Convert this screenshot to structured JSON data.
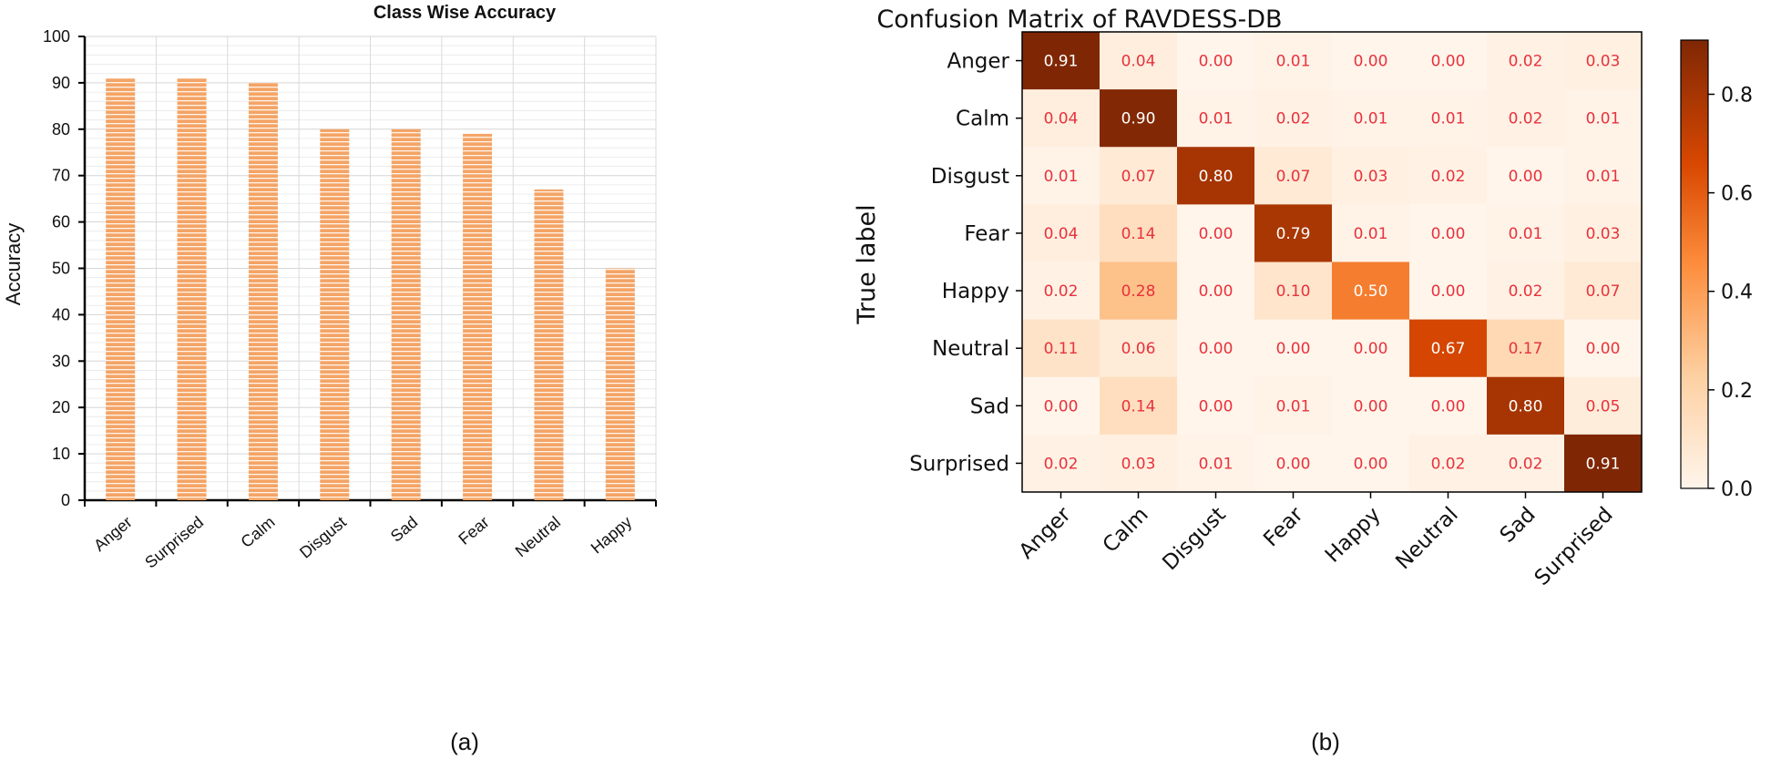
{
  "chart_data": [
    {
      "type": "bar",
      "title": "Class Wise Accuracy",
      "ylabel": "Accuracy",
      "xlabel": "",
      "ylim": [
        0,
        100
      ],
      "yticks": [
        "0",
        "10",
        "20",
        "30",
        "40",
        "50",
        "60",
        "70",
        "80",
        "90",
        "100"
      ],
      "categories": [
        "Anger",
        "Surprised",
        "Calm",
        "Disgust",
        "Sad",
        "Fear",
        "Neutral",
        "Happy"
      ],
      "values": [
        91,
        91,
        90,
        80,
        80,
        79,
        67,
        50
      ],
      "grid": true,
      "bar_color": "#f4a466",
      "stripe_color": "#ffffff",
      "caption": "(a)"
    },
    {
      "type": "heatmap",
      "title": "Confusion Matrix of RAVDESS-DB",
      "ylabel": "True label",
      "labels": [
        "Anger",
        "Calm",
        "Disgust",
        "Fear",
        "Happy",
        "Neutral",
        "Sad",
        "Surprised"
      ],
      "matrix": [
        [
          "0.91",
          "0.04",
          "0.00",
          "0.01",
          "0.00",
          "0.00",
          "0.02",
          "0.03"
        ],
        [
          "0.04",
          "0.90",
          "0.01",
          "0.02",
          "0.01",
          "0.01",
          "0.02",
          "0.01"
        ],
        [
          "0.01",
          "0.07",
          "0.80",
          "0.07",
          "0.03",
          "0.02",
          "0.00",
          "0.01"
        ],
        [
          "0.04",
          "0.14",
          "0.00",
          "0.79",
          "0.01",
          "0.00",
          "0.01",
          "0.03"
        ],
        [
          "0.02",
          "0.28",
          "0.00",
          "0.10",
          "0.50",
          "0.00",
          "0.02",
          "0.07"
        ],
        [
          "0.11",
          "0.06",
          "0.00",
          "0.00",
          "0.00",
          "0.67",
          "0.17",
          "0.00"
        ],
        [
          "0.00",
          "0.14",
          "0.00",
          "0.01",
          "0.00",
          "0.00",
          "0.80",
          "0.05"
        ],
        [
          "0.02",
          "0.03",
          "0.01",
          "0.00",
          "0.00",
          "0.02",
          "0.02",
          "0.91"
        ]
      ],
      "colorbar_range": [
        0,
        0.91
      ],
      "colorbar_ticks": [
        "0.0",
        "0.2",
        "0.4",
        "0.6",
        "0.8"
      ],
      "text_color_low": "#e8323c",
      "text_color_high": "#ffffff",
      "caption": "(b)"
    }
  ]
}
